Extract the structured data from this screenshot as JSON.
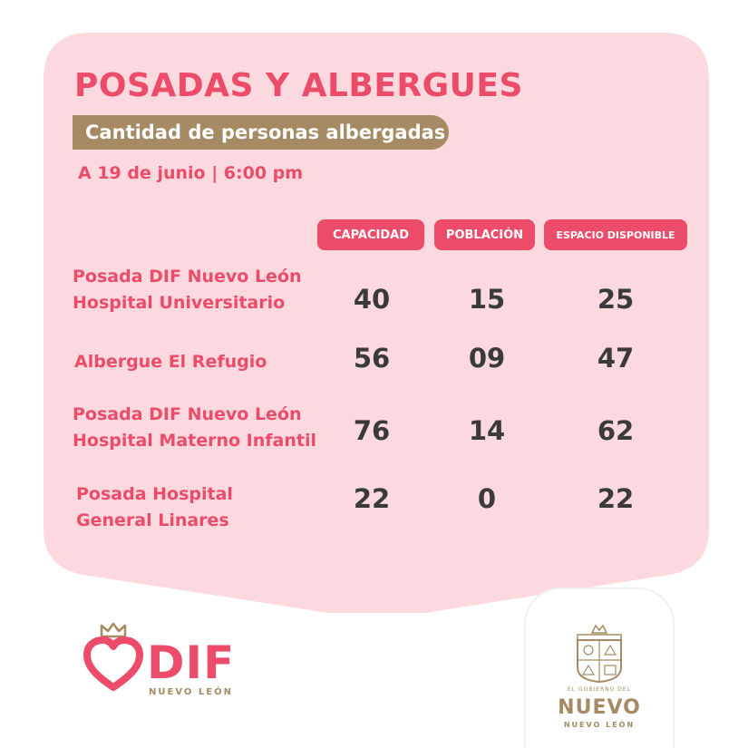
{
  "header": {
    "title": "POSADAS Y ALBERGUES",
    "subtitle": "Cantidad de personas albergadas",
    "date": "A 19 de junio | 6:00 pm"
  },
  "columns": [
    "CAPACIDAD",
    "POBLACIÓN",
    "ESPACIO DISPONIBLE"
  ],
  "rows": [
    {
      "label": [
        "Posada DIF Nuevo León",
        "Hospital Universitario"
      ],
      "values": [
        "40",
        "15",
        "25"
      ]
    },
    {
      "label": [
        "Albergue El Refugio"
      ],
      "values": [
        "56",
        "09",
        "47"
      ]
    },
    {
      "label": [
        "Posada DIF Nuevo León",
        "Hospital Materno Infantil"
      ],
      "values": [
        "76",
        "14",
        "62"
      ]
    },
    {
      "label": [
        "Posada Hospital",
        "General Linares"
      ],
      "values": [
        "22",
        "0",
        "22"
      ]
    }
  ],
  "logos": {
    "dif": {
      "name": "DIF",
      "sub": "NUEVO LEÓN",
      "icons": [
        "crown-icon",
        "heart-icon"
      ]
    },
    "government": {
      "top": "EL GOBIERNO DEL",
      "main": "NUEVO",
      "bottom": "NUEVO LEÓN",
      "icon": "coat-of-arms-icon"
    }
  },
  "colors": {
    "card_background": "#fbd9df",
    "accent_pink": "#ec4c6a",
    "gold": "#a58a63",
    "number_text": "#3a3a3a"
  }
}
